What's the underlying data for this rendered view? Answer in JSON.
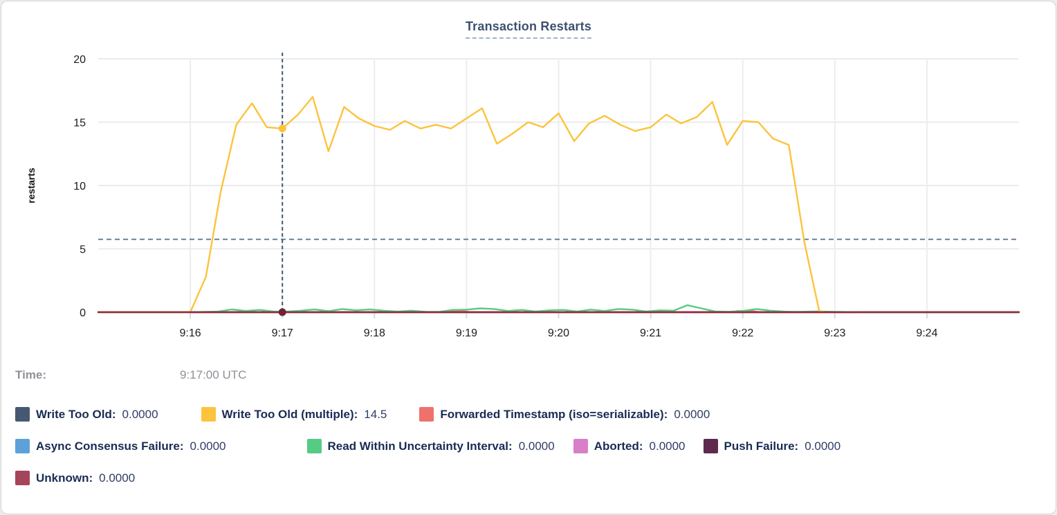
{
  "card": {
    "title": "Transaction Restarts"
  },
  "hover": {
    "label": "Time:",
    "value": "9:17:00 UTC"
  },
  "legend": {
    "rows": [
      [
        {
          "label": "Write Too Old:",
          "value": "0.0000",
          "color": "#475872"
        },
        {
          "label": "Write Too Old (multiple):",
          "value": "14.5",
          "color": "#fcc33c"
        },
        {
          "label": "Forwarded Timestamp (iso=serializable):",
          "value": "0.0000",
          "color": "#f0706b"
        }
      ],
      [
        {
          "label": "Async Consensus Failure:",
          "value": "0.0000",
          "color": "#5ea1da"
        },
        {
          "label": "Read Within Uncertainty Interval:",
          "value": "0.0000",
          "color": "#55cb84"
        },
        {
          "label": "Aborted:",
          "value": "0.0000",
          "color": "#d97fc9"
        },
        {
          "label": "Push Failure:",
          "value": "0.0000",
          "color": "#5e2a4e"
        }
      ],
      [
        {
          "label": "Unknown:",
          "value": "0.0000",
          "color": "#a64459"
        }
      ]
    ]
  },
  "chart_data": {
    "type": "line",
    "title": "Transaction Restarts",
    "xlabel": "",
    "ylabel": "restarts",
    "ylim": [
      0,
      20
    ],
    "yticks": [
      0,
      5,
      10,
      15,
      20
    ],
    "grid": true,
    "legend_position": "bottom",
    "x_domain_minutes": [
      0,
      10
    ],
    "x_tick_minutes": [
      1,
      2,
      3,
      4,
      5,
      6,
      7,
      8,
      9
    ],
    "x_tick_labels": [
      "9:16",
      "9:17",
      "9:18",
      "9:19",
      "9:20",
      "9:21",
      "9:22",
      "9:23",
      "9:24"
    ],
    "avg_line": {
      "value": 5.75,
      "style": "dashed",
      "color": "#68809f"
    },
    "crosshair": {
      "minute": 2,
      "time_label": "9:17:00 UTC",
      "color": "#3e5a74",
      "points": [
        {
          "series": "Write Too Old (multiple)",
          "value": 14.5,
          "dot_color": "#fcc33c"
        },
        {
          "series": "Unknown",
          "value": 0,
          "dot_color": "#6e2438"
        }
      ]
    },
    "series": [
      {
        "name": "Write Too Old",
        "color": "#475872",
        "points": [
          [
            0,
            0
          ],
          [
            10,
            0
          ]
        ]
      },
      {
        "name": "Async Consensus Failure",
        "color": "#5ea1da",
        "points": [
          [
            0,
            0
          ],
          [
            10,
            0
          ]
        ]
      },
      {
        "name": "Aborted",
        "color": "#d97fc9",
        "points": [
          [
            0,
            0
          ],
          [
            10,
            0
          ]
        ]
      },
      {
        "name": "Push Failure",
        "color": "#5e2a4e",
        "points": [
          [
            0,
            0
          ],
          [
            10,
            0
          ]
        ]
      },
      {
        "name": "Forwarded Timestamp (iso=serializable)",
        "color": "#f0706b",
        "points": [
          [
            0,
            0
          ],
          [
            3.7,
            0
          ],
          [
            3.8,
            0.12
          ],
          [
            3.95,
            0.1
          ],
          [
            4.05,
            0
          ],
          [
            6.85,
            0
          ],
          [
            6.95,
            0.1
          ],
          [
            7.1,
            0.08
          ],
          [
            7.2,
            0
          ],
          [
            10,
            0
          ]
        ]
      },
      {
        "name": "Read Within Uncertainty Interval",
        "color": "#55cb84",
        "points": [
          [
            0,
            0
          ],
          [
            1,
            0
          ],
          [
            1.3,
            0.05
          ],
          [
            1.45,
            0.22
          ],
          [
            1.6,
            0.1
          ],
          [
            1.75,
            0.18
          ],
          [
            1.9,
            0.06
          ],
          [
            2.05,
            0.05
          ],
          [
            2.2,
            0.12
          ],
          [
            2.35,
            0.22
          ],
          [
            2.5,
            0.08
          ],
          [
            2.65,
            0.25
          ],
          [
            2.8,
            0.15
          ],
          [
            2.95,
            0.22
          ],
          [
            3.1,
            0.12
          ],
          [
            3.25,
            0.05
          ],
          [
            3.4,
            0.12
          ],
          [
            3.55,
            0.04
          ],
          [
            3.7,
            0.03
          ],
          [
            3.85,
            0.18
          ],
          [
            4,
            0.2
          ],
          [
            4.15,
            0.3
          ],
          [
            4.3,
            0.25
          ],
          [
            4.45,
            0.1
          ],
          [
            4.6,
            0.18
          ],
          [
            4.75,
            0.06
          ],
          [
            4.9,
            0.15
          ],
          [
            5.05,
            0.18
          ],
          [
            5.2,
            0.06
          ],
          [
            5.35,
            0.2
          ],
          [
            5.5,
            0.1
          ],
          [
            5.65,
            0.25
          ],
          [
            5.8,
            0.2
          ],
          [
            5.95,
            0.06
          ],
          [
            6.1,
            0.15
          ],
          [
            6.25,
            0.12
          ],
          [
            6.4,
            0.55
          ],
          [
            6.55,
            0.3
          ],
          [
            6.7,
            0.06
          ],
          [
            6.85,
            0.04
          ],
          [
            7,
            0.1
          ],
          [
            7.15,
            0.25
          ],
          [
            7.3,
            0.12
          ],
          [
            7.45,
            0.05
          ],
          [
            7.6,
            0.03
          ],
          [
            7.8,
            0.06
          ],
          [
            8,
            0.03
          ],
          [
            8.3,
            0
          ],
          [
            10,
            0
          ]
        ]
      },
      {
        "name": "Write Too Old (multiple)",
        "color": "#fcc33c",
        "points": [
          [
            0,
            0
          ],
          [
            1,
            0
          ],
          [
            1.17,
            2.8
          ],
          [
            1.33,
            9.5
          ],
          [
            1.5,
            14.8
          ],
          [
            1.67,
            16.5
          ],
          [
            1.83,
            14.6
          ],
          [
            2,
            14.5
          ],
          [
            2.17,
            15.6
          ],
          [
            2.33,
            17
          ],
          [
            2.5,
            12.7
          ],
          [
            2.67,
            16.2
          ],
          [
            2.83,
            15.3
          ],
          [
            3,
            14.7
          ],
          [
            3.17,
            14.4
          ],
          [
            3.33,
            15.1
          ],
          [
            3.5,
            14.5
          ],
          [
            3.67,
            14.8
          ],
          [
            3.83,
            14.5
          ],
          [
            4,
            15.3
          ],
          [
            4.17,
            16.1
          ],
          [
            4.33,
            13.3
          ],
          [
            4.5,
            14.1
          ],
          [
            4.67,
            15
          ],
          [
            4.83,
            14.6
          ],
          [
            5,
            15.7
          ],
          [
            5.17,
            13.5
          ],
          [
            5.33,
            14.9
          ],
          [
            5.5,
            15.5
          ],
          [
            5.67,
            14.8
          ],
          [
            5.83,
            14.3
          ],
          [
            6,
            14.6
          ],
          [
            6.17,
            15.6
          ],
          [
            6.33,
            14.9
          ],
          [
            6.5,
            15.4
          ],
          [
            6.67,
            16.6
          ],
          [
            6.83,
            13.2
          ],
          [
            7,
            15.1
          ],
          [
            7.17,
            15
          ],
          [
            7.33,
            13.7
          ],
          [
            7.5,
            13.2
          ],
          [
            7.67,
            5.5
          ],
          [
            7.83,
            0.1
          ],
          [
            7.9,
            0
          ]
        ]
      },
      {
        "name": "Unknown",
        "color": "#8e2b3e",
        "points": [
          [
            0,
            0
          ],
          [
            10,
            0
          ]
        ]
      }
    ]
  }
}
